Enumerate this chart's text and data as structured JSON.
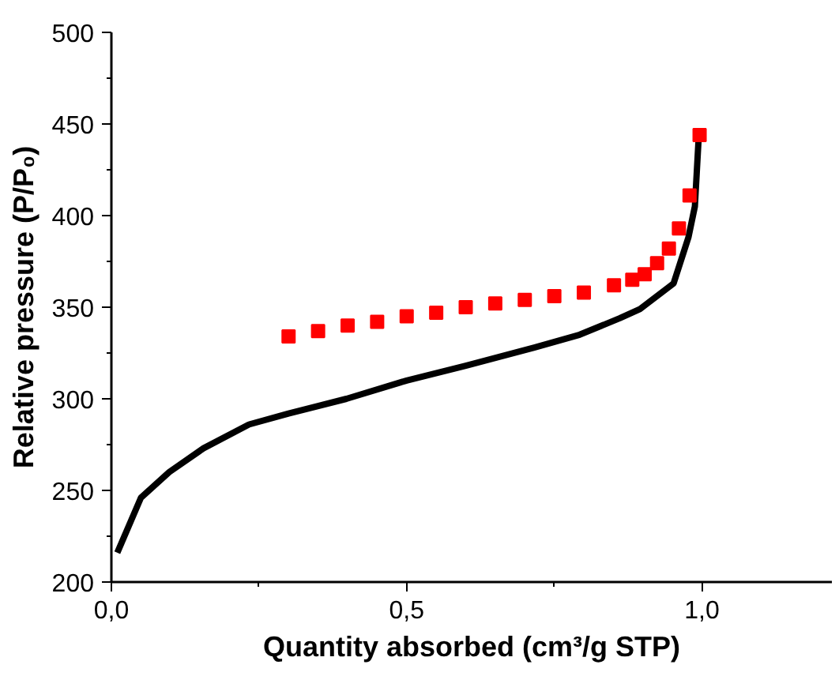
{
  "chart_data": {
    "type": "line",
    "xlabel": "Quantity absorbed (cm³/g STP)",
    "ylabel": "Relative pressure (P/P₀)",
    "xlim": [
      0,
      1.22
    ],
    "ylim": [
      200,
      500
    ],
    "xticks": [
      {
        "value": 0,
        "label": "0,0"
      },
      {
        "value": 0.5,
        "label": "0,5"
      },
      {
        "value": 1.0,
        "label": "1,0"
      }
    ],
    "yticks": [
      200,
      250,
      300,
      350,
      400,
      450,
      500
    ],
    "grid": false,
    "series": [
      {
        "color": "#000000",
        "marker": "none",
        "line_style": "solid",
        "x": [
          0.01,
          0.05,
          0.098,
          0.156,
          0.233,
          0.3,
          0.398,
          0.5,
          0.6,
          0.716,
          0.793,
          0.861,
          0.895,
          0.952,
          0.977,
          0.988,
          0.994,
          0.996
        ],
        "values": [
          216,
          246,
          260,
          273,
          286,
          292,
          300,
          310,
          318,
          328,
          335,
          344,
          349,
          363,
          388,
          405,
          440,
          446
        ]
      },
      {
        "type": "scatter",
        "color": "#ff0000",
        "marker": "square",
        "x": [
          0.3,
          0.35,
          0.4,
          0.45,
          0.5,
          0.55,
          0.6,
          0.65,
          0.7,
          0.75,
          0.8,
          0.851,
          0.882,
          0.903,
          0.924,
          0.944,
          0.961,
          0.979,
          0.996
        ],
        "values": [
          334,
          337,
          340,
          342,
          345,
          347,
          350,
          352,
          354,
          356,
          358,
          362,
          365,
          368,
          374,
          382,
          393,
          411,
          444
        ]
      }
    ]
  }
}
